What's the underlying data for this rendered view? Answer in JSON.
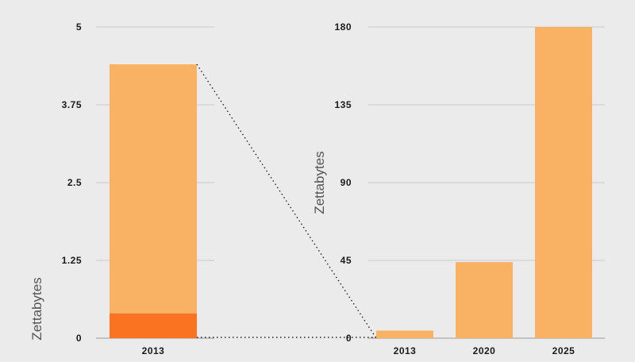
{
  "chart_data": [
    {
      "type": "bar",
      "categories": [
        "2013"
      ],
      "series": [
        {
          "values": [
            0.4
          ],
          "color": "#f97320"
        },
        {
          "values": [
            4.0
          ],
          "color": "#f9b264"
        }
      ],
      "stacked": true,
      "total": [
        4.4
      ],
      "ylabel": "Zettabytes",
      "ylim": [
        0,
        5
      ],
      "yticks": [
        "0",
        "1.25",
        "2.5",
        "3.75",
        "5"
      ],
      "grid": true
    },
    {
      "type": "bar",
      "categories": [
        "2013",
        "2020",
        "2025"
      ],
      "values": [
        4.4,
        44,
        180
      ],
      "color": "#f9b264",
      "ylabel": "Zettabytes",
      "ylim": [
        0,
        180
      ],
      "yticks": [
        "0",
        "45",
        "90",
        "135",
        "180"
      ],
      "grid": true
    }
  ]
}
